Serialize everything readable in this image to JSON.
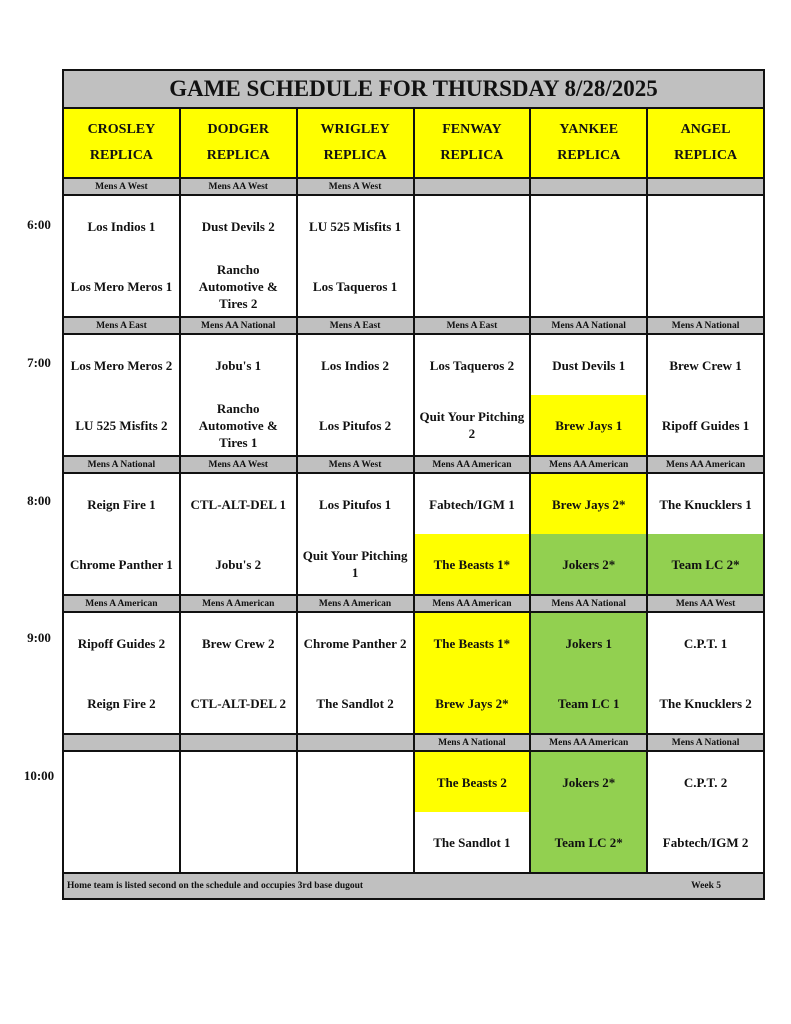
{
  "title": "GAME SCHEDULE FOR THURSDAY 8/28/2025",
  "fields": [
    [
      "CROSLEY",
      "REPLICA"
    ],
    [
      "DODGER",
      "REPLICA"
    ],
    [
      "WRIGLEY",
      "REPLICA"
    ],
    [
      "FENWAY",
      "REPLICA"
    ],
    [
      "YANKEE",
      "REPLICA"
    ],
    [
      "ANGEL",
      "REPLICA"
    ]
  ],
  "colors": {
    "white": "#ffffff",
    "yellow": "#ffff00",
    "green": "#92d050",
    "gray": "#c0c0c0"
  },
  "slots": [
    {
      "time": "6:00",
      "divisions": [
        "Mens A West",
        "Mens AA West",
        "Mens A West",
        "",
        "",
        ""
      ],
      "games": [
        [
          [
            "Los Indios 1",
            "white"
          ],
          [
            "Los Mero Meros 1",
            "white"
          ]
        ],
        [
          [
            "Dust Devils 2",
            "white"
          ],
          [
            "Rancho Automotive & Tires 2",
            "white"
          ]
        ],
        [
          [
            "LU 525 Misfits 1",
            "white"
          ],
          [
            "Los Taqueros 1",
            "white"
          ]
        ],
        [
          [
            "",
            "white"
          ],
          [
            "",
            "white"
          ]
        ],
        [
          [
            "",
            "white"
          ],
          [
            "",
            "white"
          ]
        ],
        [
          [
            "",
            "white"
          ],
          [
            "",
            "white"
          ]
        ]
      ]
    },
    {
      "time": "7:00",
      "divisions": [
        "Mens A East",
        "Mens AA National",
        "Mens A East",
        "Mens A East",
        "Mens AA National",
        "Mens A National"
      ],
      "games": [
        [
          [
            "Los Mero Meros 2",
            "white"
          ],
          [
            "LU 525 Misfits 2",
            "white"
          ]
        ],
        [
          [
            "Jobu's 1",
            "white"
          ],
          [
            "Rancho Automotive & Tires 1",
            "white"
          ]
        ],
        [
          [
            "Los Indios 2",
            "white"
          ],
          [
            "Los Pitufos 2",
            "white"
          ]
        ],
        [
          [
            "Los Taqueros 2",
            "white"
          ],
          [
            "Quit Your Pitching 2",
            "white"
          ]
        ],
        [
          [
            "Dust Devils 1",
            "white"
          ],
          [
            "Brew Jays 1",
            "yellow"
          ]
        ],
        [
          [
            "Brew Crew 1",
            "white"
          ],
          [
            "Ripoff Guides 1",
            "white"
          ]
        ]
      ]
    },
    {
      "time": "8:00",
      "divisions": [
        "Mens A National",
        "Mens AA West",
        "Mens A West",
        "Mens AA American",
        "Mens AA American",
        "Mens AA American"
      ],
      "games": [
        [
          [
            "Reign Fire 1",
            "white"
          ],
          [
            "Chrome Panther 1",
            "white"
          ]
        ],
        [
          [
            "CTL-ALT-DEL 1",
            "white"
          ],
          [
            "Jobu's 2",
            "white"
          ]
        ],
        [
          [
            "Los Pitufos 1",
            "white"
          ],
          [
            "Quit Your Pitching 1",
            "white"
          ]
        ],
        [
          [
            "Fabtech/IGM 1",
            "white"
          ],
          [
            "The Beasts 1*",
            "yellow"
          ]
        ],
        [
          [
            "Brew Jays 2*",
            "yellow"
          ],
          [
            "Jokers 2*",
            "green"
          ]
        ],
        [
          [
            "The Knucklers 1",
            "white"
          ],
          [
            "Team LC 2*",
            "green"
          ]
        ]
      ]
    },
    {
      "time": "9:00",
      "divisions": [
        "Mens A American",
        "Mens A American",
        "Mens A American",
        "Mens AA American",
        "Mens AA National",
        "Mens AA West"
      ],
      "games": [
        [
          [
            "Ripoff Guides 2",
            "white"
          ],
          [
            "Reign Fire 2",
            "white"
          ]
        ],
        [
          [
            "Brew Crew 2",
            "white"
          ],
          [
            "CTL-ALT-DEL 2",
            "white"
          ]
        ],
        [
          [
            "Chrome Panther 2",
            "white"
          ],
          [
            "The Sandlot 2",
            "white"
          ]
        ],
        [
          [
            "The Beasts 1*",
            "yellow"
          ],
          [
            "Brew Jays 2*",
            "yellow"
          ]
        ],
        [
          [
            "Jokers 1",
            "green"
          ],
          [
            "Team LC 1",
            "green"
          ]
        ],
        [
          [
            "C.P.T. 1",
            "white"
          ],
          [
            "The Knucklers 2",
            "white"
          ]
        ]
      ]
    },
    {
      "time": "10:00",
      "divisions": [
        "",
        "",
        "",
        "Mens A National",
        "Mens AA American",
        "Mens A National"
      ],
      "games": [
        [
          [
            "",
            "white"
          ],
          [
            "",
            "white"
          ]
        ],
        [
          [
            "",
            "white"
          ],
          [
            "",
            "white"
          ]
        ],
        [
          [
            "",
            "white"
          ],
          [
            "",
            "white"
          ]
        ],
        [
          [
            "The Beasts 2",
            "yellow"
          ],
          [
            "The Sandlot 1",
            "white"
          ]
        ],
        [
          [
            "Jokers 2*",
            "green"
          ],
          [
            "Team LC 2*",
            "green"
          ]
        ],
        [
          [
            "C.P.T. 2",
            "white"
          ],
          [
            "Fabtech/IGM 2",
            "white"
          ]
        ]
      ]
    }
  ],
  "footer": {
    "note": "Home team is listed second on the schedule and occupies 3rd base dugout",
    "week": "Week 5"
  }
}
